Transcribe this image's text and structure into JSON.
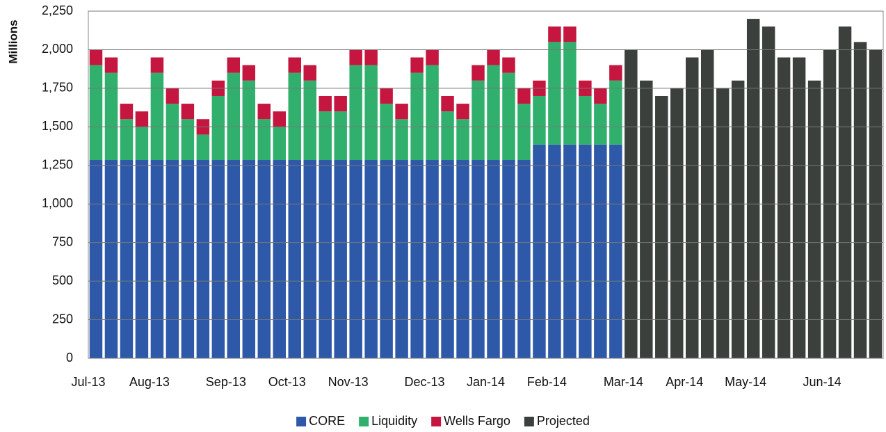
{
  "chart_data": {
    "type": "stacked_bar",
    "y_label": "Millions",
    "categories": [
      "Jul-13",
      null,
      null,
      null,
      "Aug-13",
      null,
      null,
      null,
      null,
      "Sep-13",
      null,
      null,
      null,
      "Oct-13",
      null,
      null,
      null,
      "Nov-13",
      null,
      null,
      null,
      null,
      "Dec-13",
      null,
      null,
      null,
      "Jan-14",
      null,
      null,
      null,
      "Feb-14",
      null,
      null,
      null,
      null,
      "Mar-14",
      null,
      null,
      null,
      "Apr-14",
      null,
      null,
      null,
      "May-14",
      null,
      null,
      null,
      null,
      "Jun-14",
      null,
      null,
      null
    ],
    "series": [
      {
        "name": "CORE",
        "color": "#2e58a8",
        "values": [
          1285,
          1285,
          1285,
          1285,
          1285,
          1285,
          1285,
          1285,
          1285,
          1285,
          1285,
          1285,
          1285,
          1285,
          1285,
          1285,
          1285,
          1285,
          1285,
          1285,
          1285,
          1285,
          1285,
          1285,
          1285,
          1285,
          1285,
          1285,
          1285,
          1385,
          1385,
          1385,
          1385,
          1385,
          1385,
          null,
          null,
          null,
          null,
          null,
          null,
          null,
          null,
          null,
          null,
          null,
          null,
          null,
          null,
          null,
          null,
          null
        ]
      },
      {
        "name": "Liquidity",
        "color": "#30b06c",
        "values": [
          615,
          565,
          265,
          215,
          565,
          365,
          265,
          165,
          415,
          565,
          515,
          265,
          215,
          565,
          515,
          315,
          315,
          615,
          615,
          365,
          265,
          565,
          615,
          315,
          265,
          515,
          615,
          565,
          365,
          315,
          665,
          665,
          315,
          265,
          415,
          null,
          null,
          null,
          null,
          null,
          null,
          null,
          null,
          null,
          null,
          null,
          null,
          null,
          null,
          null,
          null,
          null
        ]
      },
      {
        "name": "Wells Fargo",
        "color": "#c4163e",
        "values": [
          100,
          100,
          100,
          100,
          100,
          100,
          100,
          100,
          100,
          100,
          100,
          100,
          100,
          100,
          100,
          100,
          100,
          100,
          100,
          100,
          100,
          100,
          100,
          100,
          100,
          100,
          100,
          100,
          100,
          100,
          100,
          100,
          100,
          100,
          100,
          null,
          null,
          null,
          null,
          null,
          null,
          null,
          null,
          null,
          null,
          null,
          null,
          null,
          null,
          null,
          null,
          null
        ]
      },
      {
        "name": "Projected",
        "color": "#3b403d",
        "values": [
          null,
          null,
          null,
          null,
          null,
          null,
          null,
          null,
          null,
          null,
          null,
          null,
          null,
          null,
          null,
          null,
          null,
          null,
          null,
          null,
          null,
          null,
          null,
          null,
          null,
          null,
          null,
          null,
          null,
          null,
          null,
          null,
          null,
          null,
          null,
          2000,
          1800,
          1700,
          1750,
          1950,
          2000,
          1750,
          1800,
          2200,
          2150,
          1950,
          1950,
          1800,
          2000,
          2150,
          2050,
          2000
        ]
      }
    ],
    "ylim": [
      0,
      2250
    ],
    "yticks": [
      0,
      250,
      500,
      750,
      {
        "value": 1000,
        "label": "1,000"
      },
      {
        "value": 1250,
        "label": "1,250"
      },
      {
        "value": 1500,
        "label": "1,500"
      },
      {
        "value": 1750,
        "label": "1,750"
      },
      {
        "value": 2000,
        "label": "2,000"
      },
      {
        "value": 2250,
        "label": "2,250"
      }
    ],
    "grid": true,
    "legend": "bottom"
  }
}
